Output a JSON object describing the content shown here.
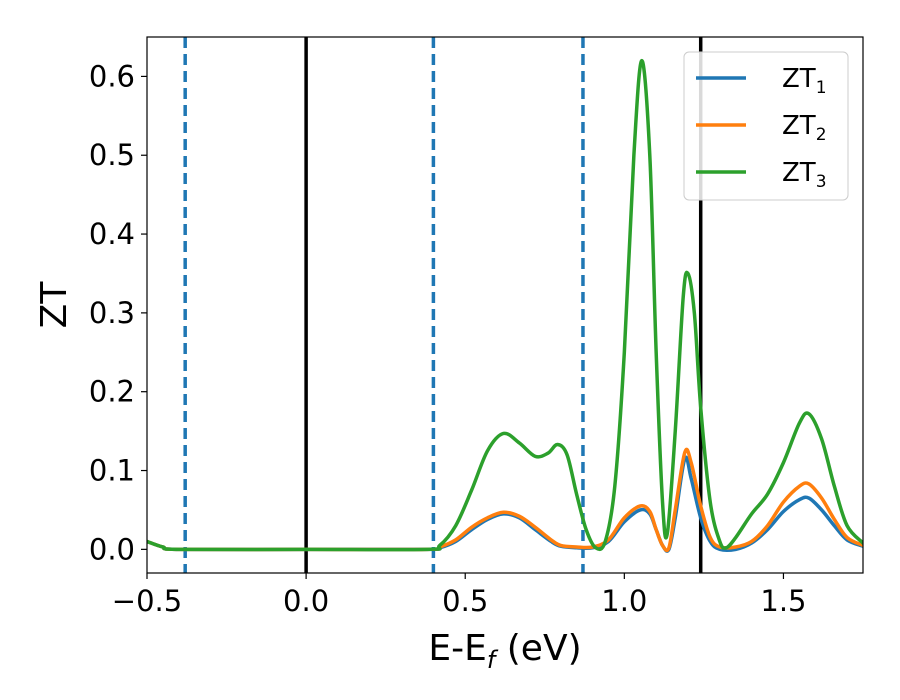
{
  "chart_data": {
    "type": "line",
    "xlabel_main": "E-E",
    "xlabel_sub": "f",
    "xlabel_unit": " (eV)",
    "ylabel": "ZT",
    "xlim": [
      -0.5,
      1.75
    ],
    "ylim": [
      -0.03,
      0.65
    ],
    "x_ticks": [
      -0.5,
      0.0,
      0.5,
      1.0,
      1.5
    ],
    "x_tick_labels": [
      "−0.5",
      "0.0",
      "0.5",
      "1.0",
      "1.5"
    ],
    "y_ticks": [
      0.0,
      0.1,
      0.2,
      0.3,
      0.4,
      0.5,
      0.6
    ],
    "y_tick_labels": [
      "0.0",
      "0.1",
      "0.2",
      "0.3",
      "0.4",
      "0.5",
      "0.6"
    ],
    "grid": false,
    "legend_position": "top-right",
    "vlines": [
      {
        "x": -0.38,
        "style": "dashed",
        "color": "#1f77b4"
      },
      {
        "x": 0.0,
        "style": "solid",
        "color": "#000000"
      },
      {
        "x": 0.4,
        "style": "dashed",
        "color": "#1f77b4"
      },
      {
        "x": 0.87,
        "style": "dashed",
        "color": "#1f77b4"
      },
      {
        "x": 1.24,
        "style": "solid",
        "color": "#000000"
      }
    ],
    "series": [
      {
        "name_main": "ZT",
        "name_sub": "1",
        "color": "#1f77b4",
        "points": [
          [
            -0.5,
            0.01
          ],
          [
            -0.45,
            0.003
          ],
          [
            -0.4,
            0.0
          ],
          [
            0.0,
            0.0
          ],
          [
            0.38,
            0.0
          ],
          [
            0.42,
            0.002
          ],
          [
            0.47,
            0.01
          ],
          [
            0.52,
            0.025
          ],
          [
            0.57,
            0.038
          ],
          [
            0.62,
            0.045
          ],
          [
            0.67,
            0.04
          ],
          [
            0.72,
            0.025
          ],
          [
            0.77,
            0.01
          ],
          [
            0.8,
            0.004
          ],
          [
            0.85,
            0.002
          ],
          [
            0.9,
            0.002
          ],
          [
            0.95,
            0.01
          ],
          [
            1.0,
            0.035
          ],
          [
            1.05,
            0.05
          ],
          [
            1.08,
            0.045
          ],
          [
            1.1,
            0.025
          ],
          [
            1.12,
            0.005
          ],
          [
            1.14,
            0.0
          ],
          [
            1.16,
            0.04
          ],
          [
            1.19,
            0.115
          ],
          [
            1.21,
            0.09
          ],
          [
            1.24,
            0.04
          ],
          [
            1.27,
            0.01
          ],
          [
            1.3,
            0.0
          ],
          [
            1.35,
            0.0
          ],
          [
            1.4,
            0.008
          ],
          [
            1.45,
            0.025
          ],
          [
            1.5,
            0.048
          ],
          [
            1.55,
            0.063
          ],
          [
            1.58,
            0.065
          ],
          [
            1.62,
            0.05
          ],
          [
            1.66,
            0.03
          ],
          [
            1.7,
            0.012
          ],
          [
            1.75,
            0.004
          ]
        ]
      },
      {
        "name_main": "ZT",
        "name_sub": "2",
        "color": "#ff7f0e",
        "points": [
          [
            -0.5,
            0.01
          ],
          [
            -0.45,
            0.003
          ],
          [
            -0.4,
            0.0
          ],
          [
            0.0,
            0.0
          ],
          [
            0.38,
            0.0
          ],
          [
            0.42,
            0.003
          ],
          [
            0.47,
            0.012
          ],
          [
            0.52,
            0.028
          ],
          [
            0.57,
            0.04
          ],
          [
            0.62,
            0.047
          ],
          [
            0.67,
            0.042
          ],
          [
            0.72,
            0.028
          ],
          [
            0.77,
            0.012
          ],
          [
            0.8,
            0.005
          ],
          [
            0.85,
            0.003
          ],
          [
            0.9,
            0.003
          ],
          [
            0.95,
            0.012
          ],
          [
            1.0,
            0.04
          ],
          [
            1.05,
            0.055
          ],
          [
            1.08,
            0.048
          ],
          [
            1.1,
            0.025
          ],
          [
            1.12,
            0.005
          ],
          [
            1.14,
            0.002
          ],
          [
            1.16,
            0.05
          ],
          [
            1.19,
            0.123
          ],
          [
            1.21,
            0.11
          ],
          [
            1.24,
            0.055
          ],
          [
            1.27,
            0.015
          ],
          [
            1.3,
            0.003
          ],
          [
            1.35,
            0.003
          ],
          [
            1.4,
            0.01
          ],
          [
            1.45,
            0.03
          ],
          [
            1.5,
            0.06
          ],
          [
            1.55,
            0.08
          ],
          [
            1.58,
            0.083
          ],
          [
            1.62,
            0.065
          ],
          [
            1.66,
            0.038
          ],
          [
            1.7,
            0.015
          ],
          [
            1.75,
            0.005
          ]
        ]
      },
      {
        "name_main": "ZT",
        "name_sub": "3",
        "color": "#2ca02c",
        "points": [
          [
            -0.5,
            0.01
          ],
          [
            -0.45,
            0.003
          ],
          [
            -0.4,
            0.0
          ],
          [
            0.0,
            0.0
          ],
          [
            0.38,
            0.0
          ],
          [
            0.42,
            0.005
          ],
          [
            0.47,
            0.03
          ],
          [
            0.52,
            0.075
          ],
          [
            0.57,
            0.125
          ],
          [
            0.62,
            0.147
          ],
          [
            0.67,
            0.135
          ],
          [
            0.72,
            0.118
          ],
          [
            0.76,
            0.122
          ],
          [
            0.79,
            0.133
          ],
          [
            0.82,
            0.12
          ],
          [
            0.85,
            0.07
          ],
          [
            0.88,
            0.025
          ],
          [
            0.91,
            0.002
          ],
          [
            0.94,
            0.01
          ],
          [
            0.97,
            0.08
          ],
          [
            1.0,
            0.25
          ],
          [
            1.03,
            0.5
          ],
          [
            1.055,
            0.62
          ],
          [
            1.08,
            0.5
          ],
          [
            1.1,
            0.25
          ],
          [
            1.12,
            0.06
          ],
          [
            1.135,
            0.02
          ],
          [
            1.16,
            0.15
          ],
          [
            1.185,
            0.32
          ],
          [
            1.2,
            0.35
          ],
          [
            1.22,
            0.3
          ],
          [
            1.24,
            0.18
          ],
          [
            1.27,
            0.06
          ],
          [
            1.3,
            0.01
          ],
          [
            1.32,
            0.002
          ],
          [
            1.35,
            0.015
          ],
          [
            1.4,
            0.045
          ],
          [
            1.45,
            0.07
          ],
          [
            1.5,
            0.11
          ],
          [
            1.55,
            0.16
          ],
          [
            1.58,
            0.172
          ],
          [
            1.62,
            0.14
          ],
          [
            1.66,
            0.08
          ],
          [
            1.7,
            0.03
          ],
          [
            1.75,
            0.008
          ]
        ]
      }
    ]
  }
}
